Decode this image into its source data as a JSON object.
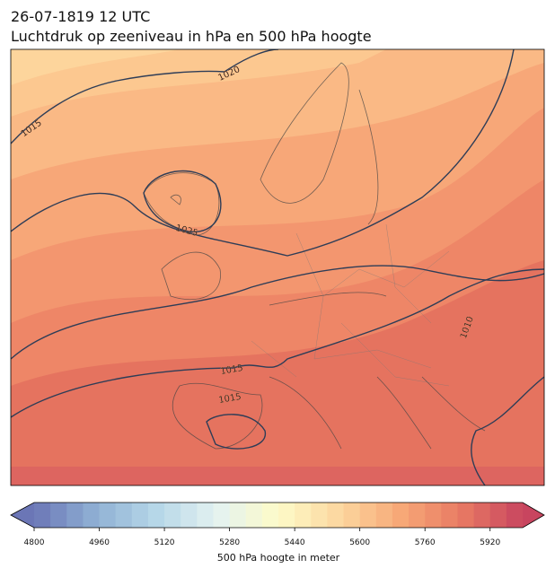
{
  "header": {
    "title": "26-07-1819 12 UTC",
    "subtitle": "Luchtdruk op zeeniveau in hPa en 500 hPa hoogte"
  },
  "map": {
    "isobar_labels": [
      1020,
      1015,
      1025,
      1015,
      1015,
      1010
    ]
  },
  "colorbar": {
    "label": "500 hPa hoogte in meter",
    "lim": [
      4800,
      6000
    ],
    "ticks": [
      4800,
      4960,
      5120,
      5280,
      5440,
      5600,
      5760,
      5920
    ],
    "level_interval": 40,
    "extend": "both",
    "colormap": [
      "#6b76b6",
      "#8fb0d4",
      "#b6d7e8",
      "#e4f2f1",
      "#fdfbc8",
      "#fcd79f",
      "#f7a877",
      "#e87a63",
      "#c8455f"
    ]
  }
}
